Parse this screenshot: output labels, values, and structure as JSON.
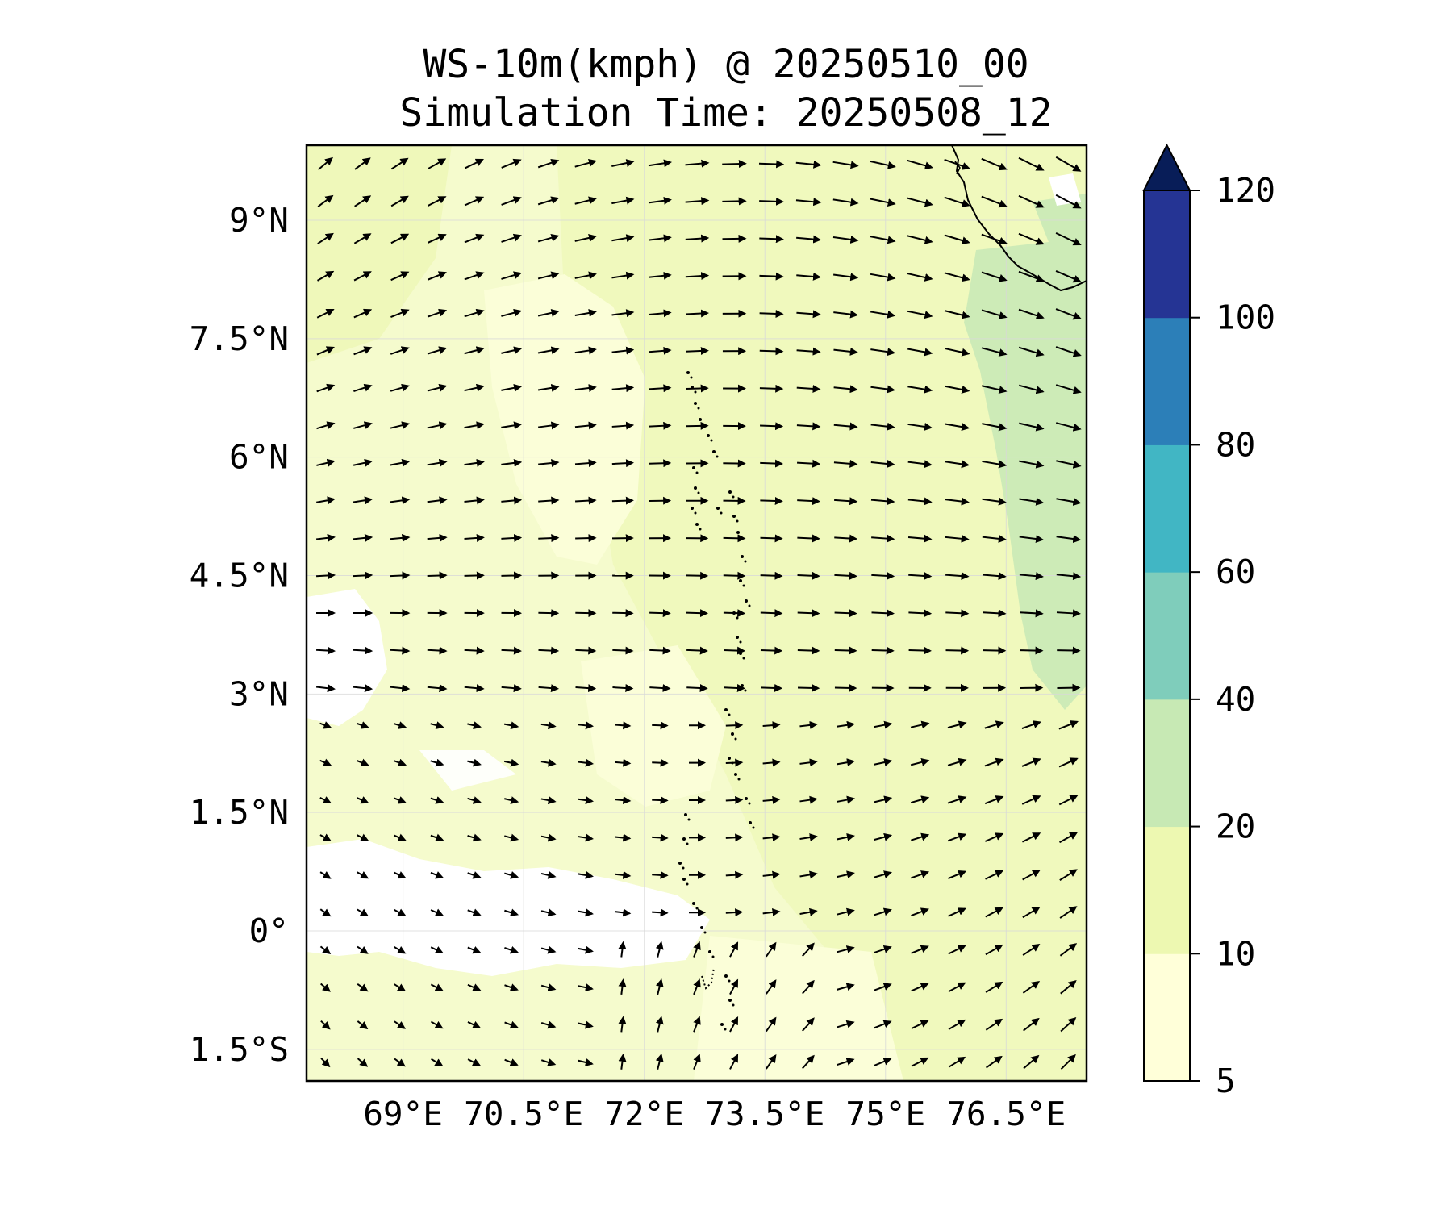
{
  "title": {
    "line1": "WS-10m(kmph) @ 20250510_00",
    "line2": "Simulation Time: 20250508_12"
  },
  "map": {
    "lon_range": [
      67.8,
      77.5
    ],
    "lat_range": [
      -1.9,
      9.95
    ],
    "lon_ticks": [
      {
        "value": 69,
        "label": "69°E"
      },
      {
        "value": 70.5,
        "label": "70.5°E"
      },
      {
        "value": 72,
        "label": "72°E"
      },
      {
        "value": 73.5,
        "label": "73.5°E"
      },
      {
        "value": 75,
        "label": "75°E"
      },
      {
        "value": 76.5,
        "label": "76.5°E"
      }
    ],
    "lat_ticks": [
      {
        "value": 9,
        "label": "9°N"
      },
      {
        "value": 7.5,
        "label": "7.5°N"
      },
      {
        "value": 6,
        "label": "6°N"
      },
      {
        "value": 4.5,
        "label": "4.5°N"
      },
      {
        "value": 3,
        "label": "3°N"
      },
      {
        "value": 1.5,
        "label": "1.5°N"
      },
      {
        "value": 0,
        "label": "0°"
      },
      {
        "value": -1.5,
        "label": "1.5°S"
      }
    ],
    "gridlines": true,
    "features": [
      "india-coastline",
      "maldives-atolls"
    ]
  },
  "colorbar": {
    "orientation": "vertical",
    "extend": "max",
    "levels": [
      {
        "value": 5,
        "label": "5"
      },
      {
        "value": 10,
        "label": "10"
      },
      {
        "value": 20,
        "label": "20"
      },
      {
        "value": 40,
        "label": "40"
      },
      {
        "value": 60,
        "label": "60"
      },
      {
        "value": 80,
        "label": "80"
      },
      {
        "value": 100,
        "label": "100"
      },
      {
        "value": 120,
        "label": "120"
      }
    ],
    "colors": [
      "#ffffd9",
      "#edf8b1",
      "#c7e9b4",
      "#7fcdbb",
      "#41b6c4",
      "#2c7fb8",
      "#253494",
      "#081d58"
    ]
  }
}
